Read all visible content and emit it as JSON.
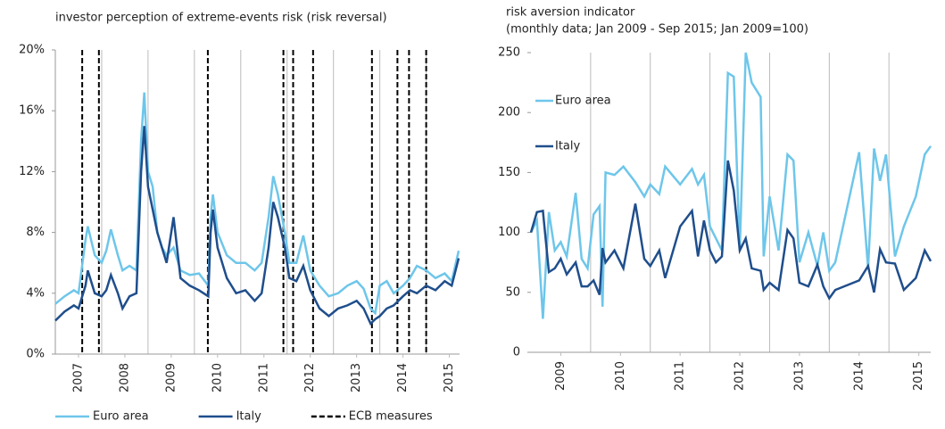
{
  "chart_data": [
    {
      "type": "line",
      "title": "investor perception of extreme-events risk (risk reversal)",
      "xlim": [
        2007,
        2015.72
      ],
      "xticks": [
        {
          "value": 2007.5,
          "label": "2007"
        },
        {
          "value": 2008.5,
          "label": "2008"
        },
        {
          "value": 2009.5,
          "label": "2009"
        },
        {
          "value": 2010.5,
          "label": "2010"
        },
        {
          "value": 2011.5,
          "label": "2011"
        },
        {
          "value": 2012.5,
          "label": "2012"
        },
        {
          "value": 2013.5,
          "label": "2013"
        },
        {
          "value": 2014.5,
          "label": "2014"
        },
        {
          "value": 2015.5,
          "label": "2015"
        }
      ],
      "ylim": [
        0,
        20
      ],
      "yticks": [
        {
          "value": 0,
          "label": "0%"
        },
        {
          "value": 4,
          "label": "4%"
        },
        {
          "value": 8,
          "label": "8%"
        },
        {
          "value": 12,
          "label": "12%"
        },
        {
          "value": 16,
          "label": "16%"
        },
        {
          "value": 20,
          "label": "20%"
        }
      ],
      "legend": "bottom",
      "x": [
        2007.0,
        2007.2,
        2007.4,
        2007.5,
        2007.65,
        2007.7,
        2007.85,
        2008.0,
        2008.1,
        2008.2,
        2008.35,
        2008.45,
        2008.6,
        2008.75,
        2008.85,
        2008.92,
        2009.0,
        2009.1,
        2009.2,
        2009.3,
        2009.4,
        2009.55,
        2009.7,
        2009.9,
        2010.1,
        2010.3,
        2010.35,
        2010.4,
        2010.5,
        2010.7,
        2010.9,
        2011.1,
        2011.3,
        2011.45,
        2011.6,
        2011.7,
        2011.8,
        2011.95,
        2012.05,
        2012.2,
        2012.35,
        2012.5,
        2012.7,
        2012.9,
        2013.1,
        2013.3,
        2013.5,
        2013.65,
        2013.8,
        2013.9,
        2014.0,
        2014.15,
        2014.3,
        2014.5,
        2014.65,
        2014.8,
        2015.0,
        2015.2,
        2015.4,
        2015.55,
        2015.7
      ],
      "series": [
        {
          "name": "Euro area",
          "color": "#6ec6ea",
          "values": [
            3.3,
            3.8,
            4.2,
            4.0,
            7.5,
            8.4,
            6.5,
            6.0,
            6.8,
            8.2,
            6.5,
            5.5,
            5.8,
            5.5,
            14,
            17.2,
            12,
            11,
            8,
            7,
            6.5,
            7.0,
            5.5,
            5.2,
            5.3,
            4.5,
            9,
            10.5,
            8,
            6.5,
            6.0,
            6.0,
            5.5,
            6.0,
            9,
            11.7,
            10.5,
            8,
            6,
            6.0,
            7.8,
            5.5,
            4.5,
            3.8,
            4.0,
            4.5,
            4.8,
            4.3,
            3.0,
            2.7,
            4.5,
            4.8,
            4.0,
            4.5,
            5.0,
            5.8,
            5.5,
            5.0,
            5.3,
            4.8,
            6.8
          ]
        },
        {
          "name": "Italy",
          "color": "#1f4e8c",
          "values": [
            2.2,
            2.8,
            3.2,
            3.0,
            4.5,
            5.5,
            4.0,
            3.8,
            4.2,
            5.2,
            4.0,
            3.0,
            3.8,
            4.0,
            12,
            15,
            11,
            9.5,
            8,
            7,
            6,
            9,
            5,
            4.5,
            4.2,
            3.8,
            8,
            9.5,
            7,
            5,
            4.0,
            4.2,
            3.5,
            4.0,
            7,
            10,
            9,
            7,
            5,
            4.8,
            5.8,
            4.2,
            3.0,
            2.5,
            3.0,
            3.2,
            3.5,
            3.0,
            2.0,
            2.3,
            2.5,
            3.0,
            3.2,
            3.8,
            4.2,
            4.0,
            4.5,
            4.2,
            4.8,
            4.5,
            6.3
          ]
        }
      ],
      "vlines": {
        "name": "ECB measures",
        "color": "#000000",
        "x": [
          2007.58,
          2007.94,
          2010.29,
          2011.92,
          2012.13,
          2012.56,
          2013.83,
          2014.38,
          2014.63,
          2015.0
        ]
      }
    },
    {
      "type": "line",
      "title": "risk aversion indicator",
      "subtitle": "(monthly data; Jan 2009 - Sep 2015; Jan 2009=100)",
      "xlim": [
        2009.0,
        2015.7
      ],
      "xticks": [
        {
          "value": 2009.5,
          "label": "2009"
        },
        {
          "value": 2010.5,
          "label": "2010"
        },
        {
          "value": 2011.5,
          "label": "2011"
        },
        {
          "value": 2012.5,
          "label": "2012"
        },
        {
          "value": 2013.5,
          "label": "2013"
        },
        {
          "value": 2014.5,
          "label": "2014"
        },
        {
          "value": 2015.5,
          "label": "2015"
        }
      ],
      "ylim": [
        0,
        250
      ],
      "yticks": [
        0,
        50,
        100,
        150,
        200,
        250
      ],
      "legend": "inside-left",
      "x": [
        2009.0,
        2009.1,
        2009.2,
        2009.3,
        2009.4,
        2009.5,
        2009.6,
        2009.75,
        2009.85,
        2009.95,
        2010.05,
        2010.15,
        2010.2,
        2010.25,
        2010.4,
        2010.55,
        2010.75,
        2010.9,
        2011.0,
        2011.15,
        2011.25,
        2011.5,
        2011.7,
        2011.8,
        2011.9,
        2012.0,
        2012.1,
        2012.2,
        2012.3,
        2012.4,
        2012.5,
        2012.6,
        2012.7,
        2012.85,
        2012.9,
        2013.0,
        2013.15,
        2013.3,
        2013.4,
        2013.5,
        2013.65,
        2013.8,
        2013.9,
        2014.0,
        2014.1,
        2014.5,
        2014.65,
        2014.75,
        2014.85,
        2014.95,
        2015.1,
        2015.25,
        2015.45,
        2015.6,
        2015.7
      ],
      "series": [
        {
          "name": "Euro area",
          "color": "#6ec6ea",
          "values": [
            100,
            110,
            28,
            117,
            85,
            92,
            80,
            133,
            78,
            70,
            115,
            122,
            38,
            150,
            148,
            155,
            142,
            130,
            140,
            132,
            155,
            140,
            153,
            140,
            148,
            105,
            95,
            85,
            233,
            230,
            85,
            250,
            225,
            213,
            80,
            130,
            85,
            165,
            160,
            75,
            100,
            72,
            100,
            68,
            75,
            167,
            70,
            170,
            143,
            165,
            80,
            105,
            130,
            165,
            172
          ]
        },
        {
          "name": "Italy",
          "color": "#1f4e8c",
          "values": [
            100,
            117,
            118,
            67,
            70,
            78,
            65,
            75,
            55,
            55,
            60,
            48,
            87,
            75,
            85,
            70,
            124,
            78,
            72,
            85,
            62,
            105,
            118,
            80,
            110,
            85,
            75,
            80,
            160,
            135,
            85,
            95,
            70,
            68,
            52,
            58,
            52,
            102,
            95,
            58,
            55,
            73,
            55,
            45,
            52,
            60,
            72,
            50,
            86,
            75,
            74,
            52,
            62,
            85,
            76
          ]
        }
      ]
    }
  ]
}
